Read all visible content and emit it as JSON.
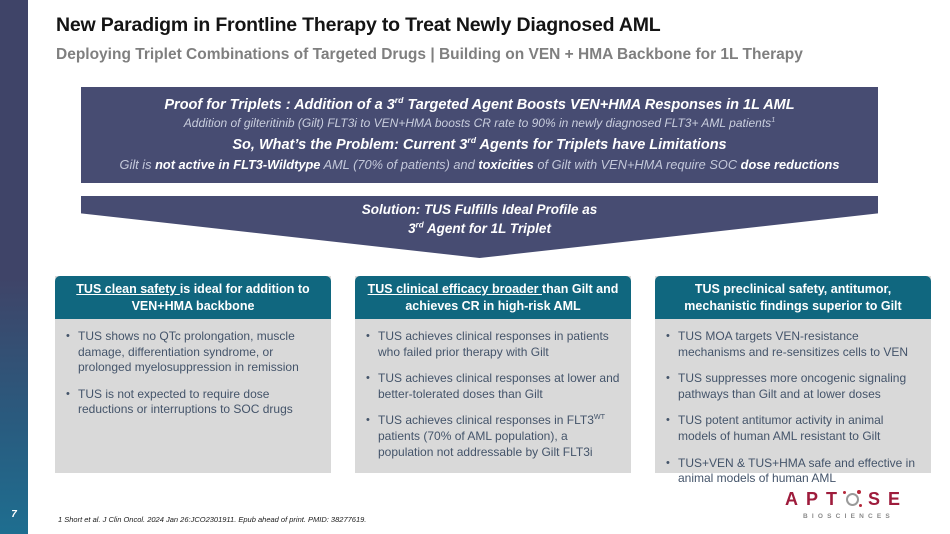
{
  "colors": {
    "navy_banner": "#474c72",
    "teal_header": "#10677f",
    "panel_gray": "#d9d9d9",
    "body_text": "#44546a",
    "subtitle_gray": "#7f7f7f",
    "banner_muted_text": "#c9cede",
    "logo_red": "#9e1c3c",
    "logo_gray": "#8a8a8a",
    "sidebar_gradient_top": "#3f4468",
    "sidebar_gradient_bottom": "#1e6e90"
  },
  "sidebar": {
    "page_number": "7"
  },
  "header": {
    "title": "New Paradigm in Frontline Therapy to Treat Newly Diagnosed AML",
    "subtitle": "Deploying Triplet Combinations of Targeted Drugs | Building on VEN + HMA Backbone for 1L Therapy"
  },
  "banner": {
    "line1_pre": "Proof for Triplets : Addition of a 3",
    "line1_sup": "rd",
    "line1_post": " Targeted Agent Boosts VEN+HMA Responses in 1L AML",
    "line2_text": "Addition of gilteritinib (Gilt) FLT3i to VEN+HMA boosts CR rate to 90% in newly diagnosed FLT3+ AML patients",
    "line2_sup": "1",
    "line3_pre": "So, What’s the Problem: Current 3",
    "line3_sup": "rd",
    "line3_post": " Agents for Triplets have Limitations",
    "line4": {
      "seg1": "Gilt is ",
      "seg2_bold": "not active in FLT3-Wildtype",
      "seg3": " AML (70% of patients) and ",
      "seg4_bold": "toxicities",
      "seg5": " of Gilt with VEN+HMA require SOC ",
      "seg6_bold": "dose reductions"
    }
  },
  "chevron": {
    "line1": "Solution: TUS Fulfills Ideal Profile as",
    "line2_pre": "3",
    "line2_sup": "rd",
    "line2_post": " Agent for 1L Triplet"
  },
  "bullet_char": "•",
  "boxes": [
    {
      "header_underlined": "TUS clean safety ",
      "header_rest": "is ideal for addition to VEN+HMA backbone",
      "bullets": [
        {
          "pre": "TUS shows no QTc prolongation, muscle damage, differentiation syndrome, or prolonged myelosuppression in remission",
          "sup": "",
          "post": ""
        },
        {
          "pre": "TUS is not expected to require dose reductions or interruptions to SOC drugs",
          "sup": "",
          "post": ""
        }
      ]
    },
    {
      "header_underlined": "TUS clinical efficacy broader ",
      "header_rest": "than Gilt and achieves CR in high-risk AML",
      "bullets": [
        {
          "pre": "TUS achieves clinical responses in patients who failed prior therapy with Gilt",
          "sup": "",
          "post": ""
        },
        {
          "pre": "TUS achieves clinical responses at lower and better-tolerated doses than Gilt",
          "sup": "",
          "post": ""
        },
        {
          "pre": "TUS achieves clinical responses in FLT3",
          "sup": "WT",
          "post": " patients (70% of AML population), a population not addressable by Gilt FLT3i"
        }
      ]
    },
    {
      "header_underlined": "",
      "header_rest": "TUS preclinical safety, antitumor, mechanistic findings superior to Gilt",
      "bullets": [
        {
          "pre": "TUS MOA targets VEN-resistance mechanisms and re-sensitizes cells to VEN",
          "sup": "",
          "post": ""
        },
        {
          "pre": "TUS suppresses more oncogenic signaling pathways than Gilt and at lower doses",
          "sup": "",
          "post": ""
        },
        {
          "pre": "TUS potent antitumor activity in animal models of human AML resistant to Gilt",
          "sup": "",
          "post": ""
        },
        {
          "pre": "TUS+VEN  & TUS+HMA safe and effective in animal models of human AML",
          "sup": "",
          "post": ""
        }
      ]
    }
  ],
  "footer": {
    "citation": "1 Short et al. J Clin Oncol. 2024 Jan 26:JCO2301911. Epub ahead of print. PMID: 38277619.",
    "logo_pre": "APT",
    "logo_post": "SE",
    "logo_sub": "BIOSCIENCES"
  }
}
